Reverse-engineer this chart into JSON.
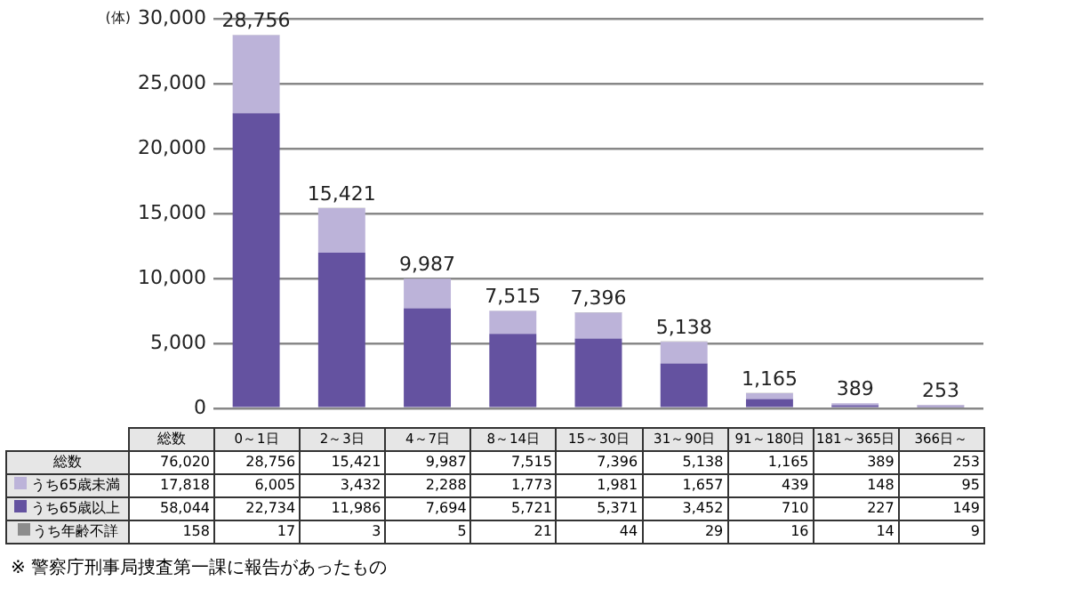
{
  "chart_data": {
    "type": "bar",
    "stacked": true,
    "ylabel": "(体)",
    "categories": [
      "0～1日",
      "2～3日",
      "4～7日",
      "8～14日",
      "15～30日",
      "31～90日",
      "91～180日",
      "181～365日",
      "366日～"
    ],
    "series": [
      {
        "name": "うち65歳以上",
        "color": "#6452a0",
        "values": [
          22734,
          11986,
          7694,
          5721,
          5371,
          3452,
          710,
          227,
          149
        ],
        "value_labels": [
          "22,734",
          "11,986",
          "7,694",
          "5,721",
          "5,371",
          "3,452",
          "710",
          "227",
          "149"
        ]
      },
      {
        "name": "うち65歳未満",
        "color": "#bcb3d9",
        "values": [
          6005,
          3432,
          2288,
          1773,
          1981,
          1657,
          439,
          148,
          95
        ],
        "value_labels": [
          "6,005",
          "3,432",
          "2,288",
          "1,773",
          "1,981",
          "1,657",
          "439",
          "148",
          "95"
        ]
      },
      {
        "name": "うち年齢不詳",
        "color": "#8c8c8c",
        "values": [
          17,
          3,
          5,
          21,
          44,
          29,
          16,
          14,
          9
        ],
        "value_labels": [
          "17",
          "3",
          "5",
          "21",
          "44",
          "29",
          "16",
          "14",
          "9"
        ]
      }
    ],
    "totals": [
      "28,756",
      "15,421",
      "9,987",
      "7,515",
      "7,396",
      "5,138",
      "1,165",
      "389",
      "253"
    ],
    "ylim": [
      0,
      30000
    ],
    "yticks": [
      0,
      {
        "value": 5000,
        "label": "5,000"
      },
      {
        "value": 10000,
        "label": "10,000"
      },
      {
        "value": 15000,
        "label": "15,000"
      },
      {
        "value": 20000,
        "label": "20,000"
      },
      {
        "value": 25000,
        "label": "25,000"
      },
      {
        "value": 30000,
        "label": "30,000"
      }
    ],
    "grid": "y",
    "legend": "bottom",
    "tick_labels": "y",
    "annotations": [
      "総数",
      "総数",
      "76,020",
      "17,818",
      "58,044",
      "158",
      "※ 警察庁刑事局捜査第一課に報告があったもの"
    ]
  }
}
